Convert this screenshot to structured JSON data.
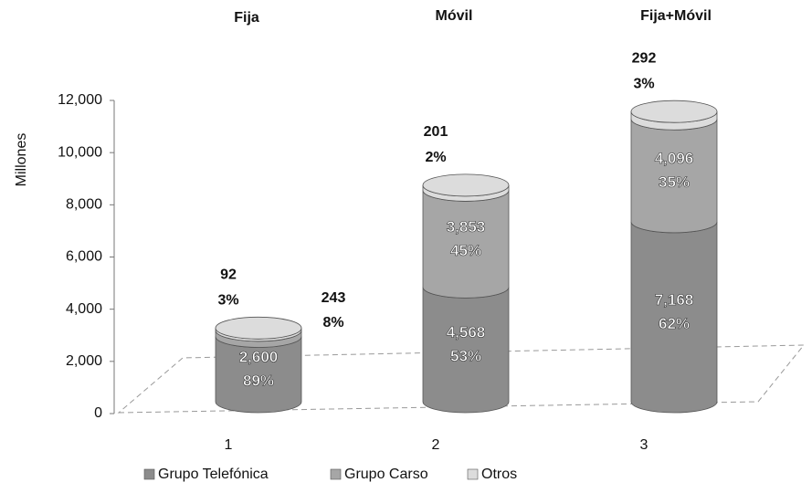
{
  "chart_data": {
    "type": "bar",
    "stacked": true,
    "style": "3d-cylinder",
    "y_label": "Millones",
    "annotations": [
      "Fija",
      "Móvil",
      "Fija+Móvil"
    ],
    "categories": [
      "1",
      "2",
      "3"
    ],
    "series": [
      {
        "name": "Grupo Telefónica",
        "color": "#8c8c8c",
        "values": [
          2600,
          4568,
          7168
        ],
        "value_labels": [
          "2,600",
          "4,568",
          "7,168"
        ],
        "share_labels": [
          "89%",
          "53%",
          "62%"
        ]
      },
      {
        "name": "Grupo Carso",
        "color": "#a6a6a6",
        "values": [
          243,
          3853,
          4096
        ],
        "value_labels": [
          "243",
          "3,853",
          "4,096"
        ],
        "share_labels": [
          "8%",
          "45%",
          "35%"
        ]
      },
      {
        "name": "Otros",
        "color": "#dcdcdc",
        "values": [
          92,
          201,
          292
        ],
        "value_labels": [
          "92",
          "201",
          "292"
        ],
        "share_labels": [
          "3%",
          "2%",
          "3%"
        ]
      }
    ],
    "ylim": [
      0,
      12000
    ],
    "yticks": [
      0,
      {
        "value": 2000,
        "label": "2,000"
      },
      {
        "value": 4000,
        "label": "4,000"
      },
      {
        "value": 6000,
        "label": "6,000"
      },
      {
        "value": 8000,
        "label": "8,000"
      },
      {
        "value": 10000,
        "label": "10,000"
      },
      {
        "value": 12000,
        "label": "12,000"
      }
    ]
  }
}
